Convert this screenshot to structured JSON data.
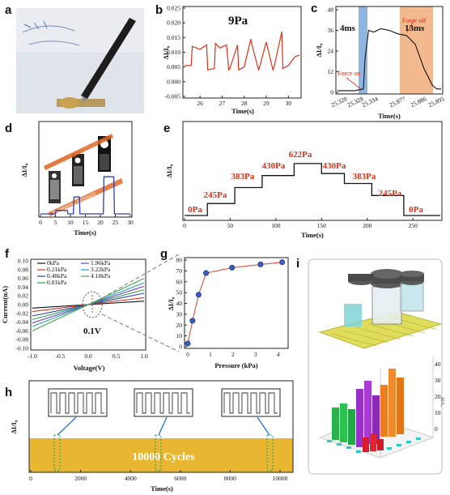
{
  "figure": {
    "panel_labels": [
      "a",
      "b",
      "c",
      "d",
      "e",
      "f",
      "g",
      "h",
      "i"
    ],
    "colors": {
      "red_line": "#d4351c",
      "blue_line": "#2f3fa8",
      "orange_text": "#e06a2a",
      "band_blue": "#8fb6e3",
      "band_orange": "#f2b98e",
      "gold": "#e8b631",
      "marker_blue": "#3a5fc8"
    }
  },
  "panel_a": {
    "description_icon": "photo-pressure-sensor-icon"
  },
  "panel_b": {
    "title": "9Pa",
    "ylabel": "ΔI/I₀",
    "xlabel": "Time(s)",
    "x_ticks": [
      "26",
      "27",
      "28",
      "29",
      "30"
    ],
    "y_ticks": [
      "0.025",
      "0.020",
      "0.015",
      "0.010",
      "0.005",
      "0.000",
      "-0.005"
    ]
  },
  "panel_c": {
    "ylabel": "ΔI/I₀",
    "xlabel": "Time(s)",
    "x_ticks": [
      "25.328",
      "25.328",
      "25.334",
      "25.877",
      "25.886",
      "25.895"
    ],
    "y_ticks": [
      "48",
      "36",
      "24",
      "12",
      "0"
    ],
    "annotations": {
      "rise": "4ms",
      "fall": "13ms",
      "force_on": "Force on",
      "force_off": "Force off"
    }
  },
  "panel_d": {
    "ylabel": "ΔI/I₀",
    "xlabel": "Time(s)",
    "x_ticks": [
      "0",
      "5",
      "10",
      "15",
      "20",
      "25",
      "30"
    ],
    "annotations": {
      "brighter": "Growing brighter",
      "pressure": "Increasing pressure"
    }
  },
  "panel_e": {
    "ylabel": "ΔI/I₀",
    "xlabel": "Time(s)",
    "x_ticks": [
      "0",
      "50",
      "100",
      "150",
      "200",
      "250"
    ],
    "step_labels": [
      "0Pa",
      "245Pa",
      "383Pa",
      "430Pa",
      "622Pa",
      "430Pa",
      "383Pa",
      "245Pa",
      "0Pa"
    ]
  },
  "panel_f": {
    "ylabel": "Current(nA)",
    "xlabel": "Voltage(V)",
    "annotation": "0.1V",
    "x_ticks": [
      "-1.0",
      "-0.5",
      "0.0",
      "0.5",
      "1.0"
    ],
    "y_ticks": [
      "0.10",
      "0.08",
      "0.06",
      "0.04",
      "0.02",
      "0.00",
      "-0.02",
      "-0.04",
      "-0.06",
      "-0.08",
      "-0.10"
    ],
    "legend": [
      "0kPa",
      "0.21kPa",
      "0.48kPa",
      "0.81kPa",
      "1.96kPa",
      "3.22kPa",
      "4.18kPa"
    ]
  },
  "panel_g": {
    "ylabel": "ΔI/I₀",
    "xlabel": "Pressure (kPa)",
    "x_ticks": [
      "0",
      "1",
      "2",
      "3",
      "4"
    ],
    "y_ticks": [
      "80",
      "70",
      "60",
      "50",
      "40",
      "30",
      "20",
      "10",
      "0"
    ]
  },
  "panel_h": {
    "ylabel": "ΔI/I₀",
    "xlabel": "Time(s)",
    "band_label": "10000 Cycles",
    "x_ticks": [
      "0",
      "2000",
      "4000",
      "6000",
      "8000",
      "10000"
    ]
  },
  "panel_i": {
    "description_icon": "3d-bar-chart-icon",
    "z_ticks": [
      "40",
      "30",
      "20",
      "10",
      "0"
    ],
    "z_label": "ΔI/I₀"
  },
  "chart_data": [
    {
      "type": "line",
      "panel": "b",
      "title": "9Pa",
      "xlabel": "Time(s)",
      "ylabel": "ΔI/I₀",
      "xlim": [
        25.3,
        30.5
      ],
      "ylim": [
        -0.005,
        0.025
      ],
      "series": [
        {
          "x": [
            25.3,
            25.6,
            25.65,
            26.0,
            26.3,
            26.35,
            26.65,
            26.7,
            26.9,
            27.2,
            27.3,
            27.35,
            27.7,
            27.75,
            28.0,
            28.3,
            28.35,
            28.65,
            28.7,
            29.0,
            29.3,
            29.35,
            29.7,
            29.75,
            30.0,
            30.3,
            30.5
          ],
          "y": [
            0.0055,
            0.0055,
            0.012,
            0.011,
            0.0125,
            0.004,
            0.0045,
            0.013,
            0.0115,
            0.0125,
            0.004,
            0.0045,
            0.0125,
            0.004,
            0.005,
            0.0145,
            0.0125,
            0.004,
            0.005,
            0.0135,
            0.004,
            0.005,
            0.017,
            0.0045,
            0.0055,
            0.0085,
            0.009
          ]
        }
      ]
    },
    {
      "type": "line",
      "panel": "c",
      "xlabel": "Time(s)",
      "ylabel": "ΔI/I₀",
      "ylim": [
        0,
        48
      ],
      "series": [
        {
          "x": [
            0,
            1,
            2,
            3,
            3.2,
            3.6,
            4.2,
            5,
            6,
            7,
            8,
            9,
            10,
            11,
            11.5,
            12
          ],
          "y": [
            1,
            1,
            1,
            2,
            20,
            36,
            35,
            37,
            36,
            34,
            33,
            28,
            14,
            4,
            2,
            2
          ]
        }
      ]
    },
    {
      "type": "line",
      "panel": "d",
      "xlabel": "Time(s)",
      "ylabel": "ΔI/I₀",
      "xlim": [
        0,
        30
      ],
      "series": [
        {
          "x": [
            0,
            5,
            5.2,
            9,
            9.2,
            11,
            11.2,
            13,
            13.2,
            14,
            14.2,
            21,
            21.2,
            24.5,
            24.7,
            30
          ],
          "y": [
            0,
            0,
            2,
            2,
            0,
            0,
            10,
            10,
            0,
            0,
            0,
            0,
            22,
            22,
            0,
            0
          ]
        }
      ]
    },
    {
      "type": "line",
      "panel": "e",
      "xlabel": "Time(s)",
      "ylabel": "ΔI/I₀",
      "xlim": [
        0,
        280
      ],
      "series": [
        {
          "x": [
            0,
            25,
            25,
            55,
            55,
            85,
            85,
            120,
            120,
            150,
            150,
            175,
            175,
            205,
            205,
            240,
            240,
            280
          ],
          "y": [
            0,
            0,
            12,
            12,
            28,
            28,
            40,
            40,
            52,
            52,
            42,
            42,
            32,
            32,
            20,
            20,
            0,
            0
          ]
        }
      ]
    },
    {
      "type": "line",
      "panel": "f",
      "xlabel": "Voltage(V)",
      "ylabel": "Current(nA)",
      "xlim": [
        -1,
        1
      ],
      "ylim": [
        -0.1,
        0.1
      ],
      "series": [
        {
          "name": "0kPa",
          "x": [
            -1,
            1
          ],
          "y": [
            -0.008,
            0.008
          ]
        },
        {
          "name": "0.21kPa",
          "x": [
            -1,
            1
          ],
          "y": [
            -0.016,
            0.016
          ]
        },
        {
          "name": "0.48kPa",
          "x": [
            -1,
            1
          ],
          "y": [
            -0.026,
            0.026
          ]
        },
        {
          "name": "0.81kPa",
          "x": [
            -1,
            1
          ],
          "y": [
            -0.034,
            0.034
          ]
        },
        {
          "name": "1.96kPa",
          "x": [
            -1,
            1
          ],
          "y": [
            -0.042,
            0.042
          ]
        },
        {
          "name": "3.22kPa",
          "x": [
            -1,
            1
          ],
          "y": [
            -0.05,
            0.05
          ]
        },
        {
          "name": "4.18kPa",
          "x": [
            -1,
            1
          ],
          "y": [
            -0.06,
            0.06
          ]
        }
      ]
    },
    {
      "type": "scatter",
      "panel": "g",
      "xlabel": "Pressure (kPa)",
      "ylabel": "ΔI/I₀",
      "xlim": [
        0,
        4.3
      ],
      "ylim": [
        0,
        80
      ],
      "series": [
        {
          "x": [
            0,
            0.21,
            0.48,
            0.81,
            1.96,
            3.22,
            4.18
          ],
          "y": [
            3,
            24,
            48,
            68,
            73,
            76,
            78
          ]
        }
      ]
    },
    {
      "type": "area",
      "panel": "h",
      "xlabel": "Time(s)",
      "ylabel": "ΔI/I₀",
      "xlim": [
        0,
        10000
      ],
      "band_label": "10000 Cycles"
    }
  ]
}
